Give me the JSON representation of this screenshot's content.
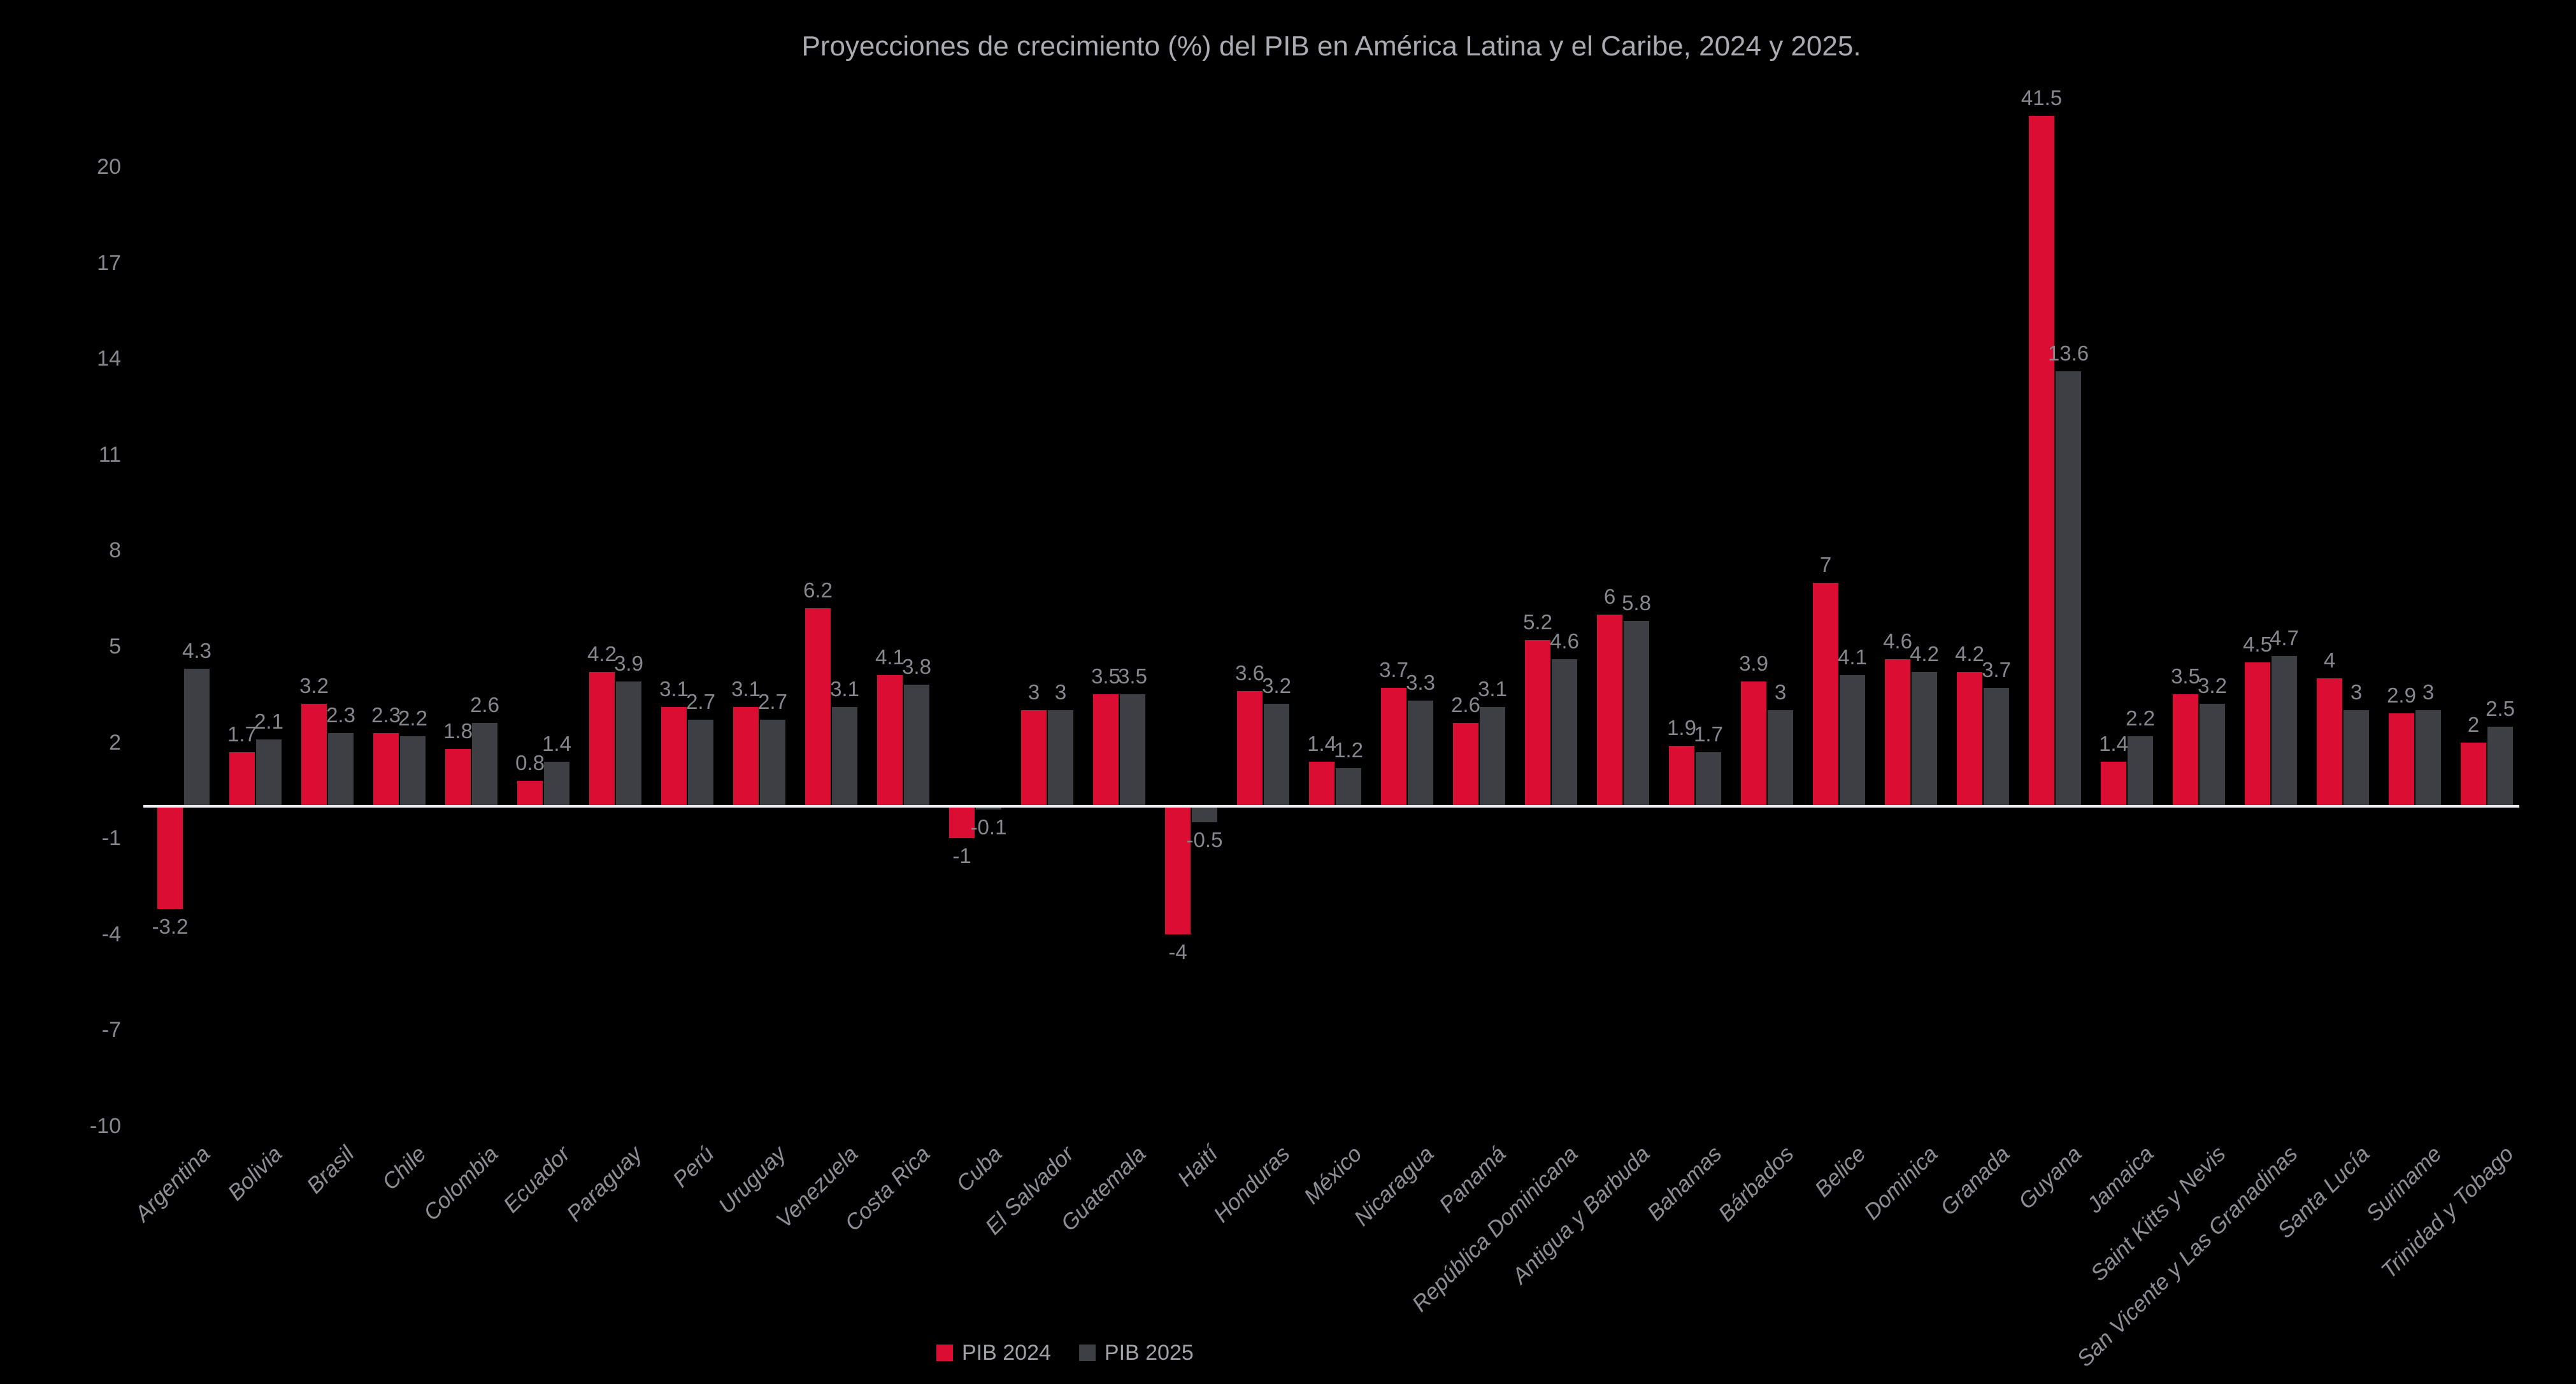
{
  "title": "Proyecciones de crecimiento (%) del PIB en América Latina y el Caribe, 2024 y 2025.",
  "colors": {
    "background": "#000000",
    "pib_2024": "#DB0D33",
    "pib_2025": "#3D3F45",
    "axis_line": "#ECEDEE",
    "tick_text": "#86888E",
    "value_label_text": "#86888E",
    "category_text": "#8D8F95",
    "title_text": "#A9ABB1",
    "legend_text": "#A0A2A7"
  },
  "legend": {
    "items": [
      {
        "label": "PIB 2024",
        "color": "#DB0D33"
      },
      {
        "label": "PIB 2025",
        "color": "#3D3F45"
      }
    ],
    "position": "bottom"
  },
  "chart_data": {
    "type": "bar",
    "title": "Proyecciones de crecimiento (%) del PIB en América Latina y el Caribe, 2024 y 2025.",
    "xlabel": "",
    "ylabel": "",
    "grid": false,
    "legend_position": "bottom",
    "y_ticks": [
      20,
      17,
      14,
      11,
      8,
      5,
      2,
      -1,
      -4,
      -7,
      -10
    ],
    "ylim": [
      -10,
      21.6
    ],
    "clip_note": "Guyana PIB 2024 bar (41.5) extends past the top of the plot area and is clipped; its label sits above the clipped bar",
    "categories": [
      "Argentina",
      "Bolivia",
      "Brasil",
      "Chile",
      "Colombia",
      "Ecuador",
      "Paraguay",
      "Perú",
      "Uruguay",
      "Venezuela",
      "Costa Rica",
      "Cuba",
      "El Salvador",
      "Guatemala",
      "Haití",
      "Honduras",
      "México",
      "Nicaragua",
      "Panamá",
      "República Dominicana",
      "Antigua y Barbuda",
      "Bahamas",
      "Bárbados",
      "Belice",
      "Dominica",
      "Granada",
      "Guyana",
      "Jamaica",
      "Saint Kitts y Nevis",
      "San Vicente y Las Granadinas",
      "Santa Lucía",
      "Suriname",
      "Trinidad y Tobago"
    ],
    "series": [
      {
        "name": "PIB 2024",
        "color": "#DB0D33",
        "values": [
          -3.2,
          1.7,
          3.2,
          2.3,
          1.8,
          0.8,
          4.2,
          3.1,
          3.1,
          6.2,
          4.1,
          -1,
          3,
          3.5,
          -4,
          3.6,
          1.4,
          3.7,
          2.6,
          5.2,
          6,
          1.9,
          3.9,
          7,
          4.6,
          4.2,
          41.5,
          1.4,
          3.5,
          4.5,
          4,
          2.9,
          2
        ]
      },
      {
        "name": "PIB 2025",
        "color": "#3D3F45",
        "values": [
          4.3,
          2.1,
          2.3,
          2.2,
          2.6,
          1.4,
          3.9,
          2.7,
          2.7,
          3.1,
          3.8,
          -0.1,
          3,
          3.5,
          -0.5,
          3.2,
          1.2,
          3.3,
          3.1,
          4.6,
          5.8,
          1.7,
          3,
          4.1,
          4.2,
          3.7,
          13.6,
          2.2,
          3.2,
          4.7,
          3,
          3,
          2.5
        ]
      }
    ]
  }
}
